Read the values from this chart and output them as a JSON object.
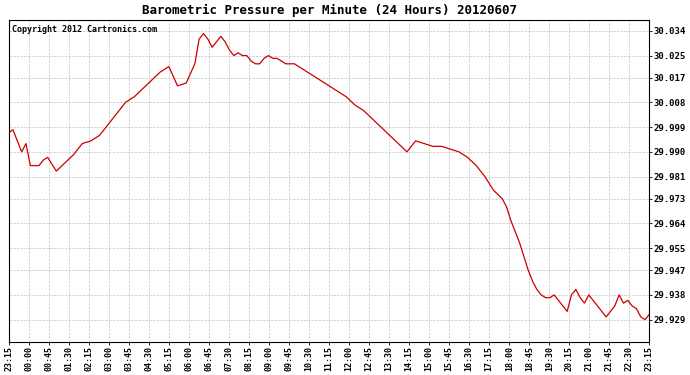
{
  "title": "Barometric Pressure per Minute (24 Hours) 20120607",
  "copyright": "Copyright 2012 Cartronics.com",
  "line_color": "#cc0000",
  "background_color": "#ffffff",
  "grid_color": "#aaaaaa",
  "yticks": [
    29.929,
    29.938,
    29.947,
    29.955,
    29.964,
    29.973,
    29.981,
    29.99,
    29.999,
    30.008,
    30.017,
    30.025,
    30.034
  ],
  "ylim": [
    29.921,
    30.038
  ],
  "xtick_labels": [
    "23:15",
    "00:00",
    "00:45",
    "01:30",
    "02:15",
    "03:00",
    "03:45",
    "04:30",
    "05:15",
    "06:00",
    "06:45",
    "07:30",
    "08:15",
    "09:00",
    "09:45",
    "10:30",
    "11:15",
    "12:00",
    "12:45",
    "13:30",
    "14:15",
    "15:00",
    "15:45",
    "16:30",
    "17:15",
    "18:00",
    "18:45",
    "19:30",
    "20:15",
    "21:00",
    "21:45",
    "22:30",
    "23:15"
  ],
  "curve": [
    [
      0,
      29.997
    ],
    [
      5,
      29.998
    ],
    [
      10,
      29.994
    ],
    [
      15,
      29.99
    ],
    [
      20,
      29.993
    ],
    [
      25,
      29.985
    ],
    [
      30,
      29.985
    ],
    [
      35,
      29.985
    ],
    [
      40,
      29.987
    ],
    [
      45,
      29.988
    ],
    [
      55,
      29.983
    ],
    [
      65,
      29.986
    ],
    [
      75,
      29.989
    ],
    [
      85,
      29.993
    ],
    [
      95,
      29.994
    ],
    [
      105,
      29.996
    ],
    [
      115,
      30.0
    ],
    [
      125,
      30.004
    ],
    [
      135,
      30.008
    ],
    [
      145,
      30.01
    ],
    [
      155,
      30.013
    ],
    [
      165,
      30.016
    ],
    [
      175,
      30.019
    ],
    [
      185,
      30.021
    ],
    [
      195,
      30.014
    ],
    [
      205,
      30.015
    ],
    [
      215,
      30.022
    ],
    [
      220,
      30.031
    ],
    [
      225,
      30.033
    ],
    [
      230,
      30.031
    ],
    [
      235,
      30.028
    ],
    [
      240,
      30.03
    ],
    [
      245,
      30.032
    ],
    [
      250,
      30.03
    ],
    [
      255,
      30.027
    ],
    [
      260,
      30.025
    ],
    [
      265,
      30.026
    ],
    [
      270,
      30.025
    ],
    [
      275,
      30.025
    ],
    [
      280,
      30.023
    ],
    [
      285,
      30.022
    ],
    [
      290,
      30.022
    ],
    [
      295,
      30.024
    ],
    [
      300,
      30.025
    ],
    [
      305,
      30.024
    ],
    [
      310,
      30.024
    ],
    [
      315,
      30.023
    ],
    [
      320,
      30.022
    ],
    [
      330,
      30.022
    ],
    [
      340,
      30.02
    ],
    [
      350,
      30.018
    ],
    [
      360,
      30.016
    ],
    [
      370,
      30.014
    ],
    [
      380,
      30.012
    ],
    [
      390,
      30.01
    ],
    [
      400,
      30.007
    ],
    [
      410,
      30.005
    ],
    [
      420,
      30.002
    ],
    [
      430,
      29.999
    ],
    [
      440,
      29.996
    ],
    [
      450,
      29.993
    ],
    [
      460,
      29.99
    ],
    [
      470,
      29.994
    ],
    [
      480,
      29.993
    ],
    [
      490,
      29.992
    ],
    [
      500,
      29.992
    ],
    [
      510,
      29.991
    ],
    [
      520,
      29.99
    ],
    [
      530,
      29.988
    ],
    [
      540,
      29.985
    ],
    [
      550,
      29.981
    ],
    [
      560,
      29.976
    ],
    [
      570,
      29.973
    ],
    [
      575,
      29.97
    ],
    [
      580,
      29.965
    ],
    [
      585,
      29.961
    ],
    [
      590,
      29.957
    ],
    [
      595,
      29.952
    ],
    [
      600,
      29.947
    ],
    [
      605,
      29.943
    ],
    [
      610,
      29.94
    ],
    [
      615,
      29.938
    ],
    [
      620,
      29.937
    ],
    [
      625,
      29.937
    ],
    [
      630,
      29.938
    ],
    [
      635,
      29.936
    ],
    [
      640,
      29.934
    ],
    [
      645,
      29.932
    ],
    [
      650,
      29.938
    ],
    [
      655,
      29.94
    ],
    [
      660,
      29.937
    ],
    [
      665,
      29.935
    ],
    [
      670,
      29.938
    ],
    [
      675,
      29.936
    ],
    [
      680,
      29.934
    ],
    [
      685,
      29.932
    ],
    [
      690,
      29.93
    ],
    [
      695,
      29.932
    ],
    [
      700,
      29.934
    ],
    [
      705,
      29.938
    ],
    [
      710,
      29.935
    ],
    [
      715,
      29.936
    ],
    [
      720,
      29.934
    ],
    [
      725,
      29.933
    ],
    [
      730,
      29.93
    ],
    [
      735,
      29.929
    ],
    [
      740,
      29.931
    ]
  ]
}
